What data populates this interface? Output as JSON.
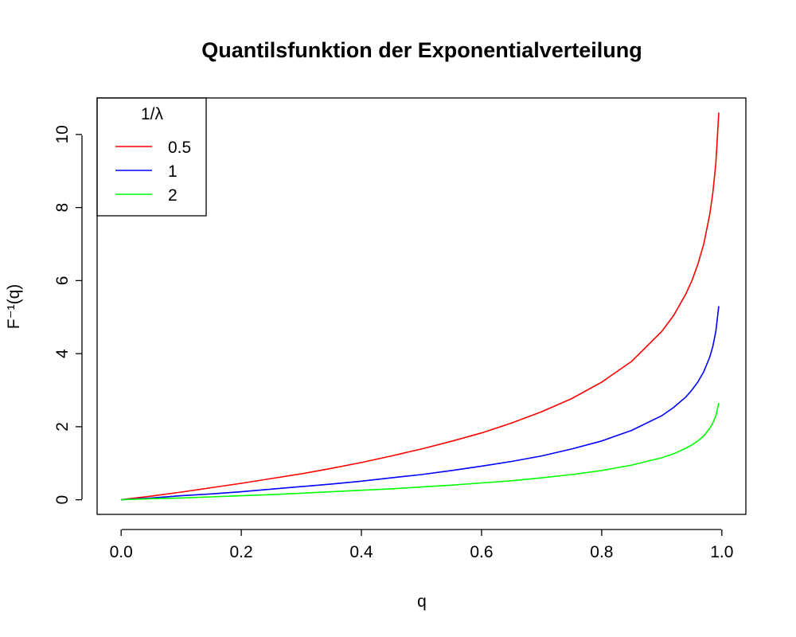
{
  "chart_data": {
    "type": "line",
    "title": "Quantilsfunktion der Exponentialverteilung",
    "xlabel": "q",
    "ylabel": "F⁻¹(q)",
    "xlim": [
      -0.04,
      1.04
    ],
    "ylim": [
      -0.4,
      11.0
    ],
    "x_ticks": [
      0.0,
      0.2,
      0.4,
      0.6,
      0.8,
      1.0
    ],
    "x_tick_labels": [
      "0.0",
      "0.2",
      "0.4",
      "0.6",
      "0.8",
      "1.0"
    ],
    "y_ticks": [
      0,
      2,
      4,
      6,
      8,
      10
    ],
    "y_tick_labels": [
      "0",
      "2",
      "4",
      "6",
      "8",
      "10"
    ],
    "grid": false,
    "legend": {
      "title": "1/λ",
      "placement": "top-left"
    },
    "series": [
      {
        "name": "0.5",
        "color": "#ff0000",
        "x": [
          0.0,
          0.05,
          0.1,
          0.15,
          0.2,
          0.25,
          0.3,
          0.35,
          0.4,
          0.45,
          0.5,
          0.55,
          0.6,
          0.65,
          0.7,
          0.75,
          0.8,
          0.85,
          0.9,
          0.92,
          0.94,
          0.95,
          0.96,
          0.97,
          0.98,
          0.985,
          0.99,
          0.995
        ],
        "y": [
          0.0,
          0.1,
          0.21,
          0.33,
          0.45,
          0.58,
          0.71,
          0.86,
          1.02,
          1.2,
          1.39,
          1.6,
          1.83,
          2.1,
          2.41,
          2.77,
          3.22,
          3.79,
          4.61,
          5.05,
          5.63,
          5.99,
          6.44,
          7.01,
          7.82,
          8.4,
          9.21,
          10.6
        ]
      },
      {
        "name": "1",
        "color": "#0000ff",
        "x": [
          0.0,
          0.05,
          0.1,
          0.15,
          0.2,
          0.25,
          0.3,
          0.35,
          0.4,
          0.45,
          0.5,
          0.55,
          0.6,
          0.65,
          0.7,
          0.75,
          0.8,
          0.85,
          0.9,
          0.92,
          0.94,
          0.95,
          0.96,
          0.97,
          0.98,
          0.985,
          0.99,
          0.995
        ],
        "y": [
          0.0,
          0.05,
          0.11,
          0.16,
          0.22,
          0.29,
          0.36,
          0.43,
          0.51,
          0.6,
          0.69,
          0.8,
          0.92,
          1.05,
          1.2,
          1.39,
          1.61,
          1.9,
          2.3,
          2.53,
          2.81,
          3.0,
          3.22,
          3.51,
          3.91,
          4.2,
          4.61,
          5.3
        ]
      },
      {
        "name": "2",
        "color": "#00ff00",
        "x": [
          0.0,
          0.05,
          0.1,
          0.15,
          0.2,
          0.25,
          0.3,
          0.35,
          0.4,
          0.45,
          0.5,
          0.55,
          0.6,
          0.65,
          0.7,
          0.75,
          0.8,
          0.85,
          0.9,
          0.92,
          0.94,
          0.95,
          0.96,
          0.97,
          0.98,
          0.985,
          0.99,
          0.995
        ],
        "y": [
          0.0,
          0.03,
          0.05,
          0.08,
          0.11,
          0.14,
          0.18,
          0.22,
          0.26,
          0.3,
          0.35,
          0.4,
          0.46,
          0.52,
          0.6,
          0.69,
          0.8,
          0.95,
          1.15,
          1.26,
          1.41,
          1.5,
          1.61,
          1.75,
          1.96,
          2.1,
          2.3,
          2.65
        ]
      }
    ]
  }
}
